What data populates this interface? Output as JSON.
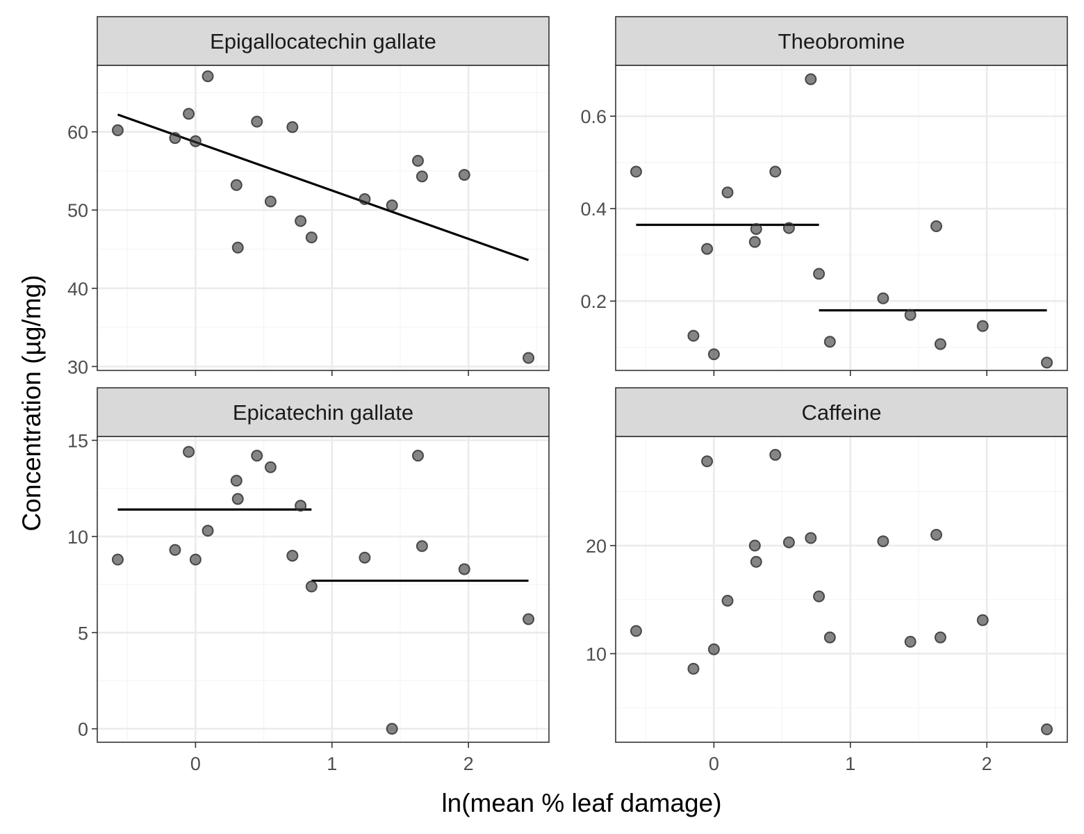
{
  "figure": {
    "xlabel": "ln(mean % leaf damage)",
    "ylabel": "Concentration (µg/mg)"
  },
  "colors": {
    "point_fill": "#333333",
    "point_opacity": 0.6,
    "strip_fill": "#d9d9d9",
    "panel_border": "#333333",
    "grid_major": "#ebebeb",
    "grid_minor": "#f5f5f5",
    "fit_line": "#000000"
  },
  "chart_data": [
    {
      "type": "scatter",
      "title": "Epigallocatechin gallate",
      "xlim": [
        -0.72,
        2.59
      ],
      "ylim": [
        29.5,
        68.5
      ],
      "xticks": [
        0,
        1,
        2
      ],
      "yticks": [
        30,
        40,
        50,
        60
      ],
      "points": [
        {
          "x": -0.57,
          "y": 60.2
        },
        {
          "x": -0.15,
          "y": 59.2
        },
        {
          "x": -0.05,
          "y": 62.3
        },
        {
          "x": 0.0,
          "y": 58.8
        },
        {
          "x": 0.09,
          "y": 67.1
        },
        {
          "x": 0.3,
          "y": 53.2
        },
        {
          "x": 0.31,
          "y": 45.2
        },
        {
          "x": 0.45,
          "y": 61.3
        },
        {
          "x": 0.55,
          "y": 51.1
        },
        {
          "x": 0.71,
          "y": 60.6
        },
        {
          "x": 0.77,
          "y": 48.6
        },
        {
          "x": 0.85,
          "y": 46.5
        },
        {
          "x": 1.24,
          "y": 51.4
        },
        {
          "x": 1.44,
          "y": 50.6
        },
        {
          "x": 1.63,
          "y": 56.3
        },
        {
          "x": 1.66,
          "y": 54.3
        },
        {
          "x": 1.97,
          "y": 54.5
        },
        {
          "x": 2.44,
          "y": 31.1
        }
      ],
      "fit_segments": [
        {
          "x": [
            -0.57,
            2.44
          ],
          "y": [
            62.2,
            43.6
          ]
        }
      ]
    },
    {
      "type": "scatter",
      "title": "Theobromine",
      "xlim": [
        -0.72,
        2.59
      ],
      "ylim": [
        0.05,
        0.71
      ],
      "xticks": [
        0,
        1,
        2
      ],
      "yticks": [
        0.2,
        0.4,
        0.6
      ],
      "ytick_labels": [
        "0.2",
        "0.4",
        "0.6"
      ],
      "points": [
        {
          "x": -0.57,
          "y": 0.48
        },
        {
          "x": -0.15,
          "y": 0.125
        },
        {
          "x": -0.05,
          "y": 0.313
        },
        {
          "x": 0.0,
          "y": 0.085
        },
        {
          "x": 0.1,
          "y": 0.435
        },
        {
          "x": 0.3,
          "y": 0.328
        },
        {
          "x": 0.31,
          "y": 0.356
        },
        {
          "x": 0.45,
          "y": 0.48
        },
        {
          "x": 0.55,
          "y": 0.358
        },
        {
          "x": 0.71,
          "y": 0.68
        },
        {
          "x": 0.77,
          "y": 0.259
        },
        {
          "x": 0.85,
          "y": 0.112
        },
        {
          "x": 1.24,
          "y": 0.206
        },
        {
          "x": 1.44,
          "y": 0.17
        },
        {
          "x": 1.63,
          "y": 0.362
        },
        {
          "x": 1.66,
          "y": 0.107
        },
        {
          "x": 1.97,
          "y": 0.146
        },
        {
          "x": 2.44,
          "y": 0.067
        }
      ],
      "fit_segments": [
        {
          "x": [
            -0.57,
            0.77
          ],
          "y": [
            0.365,
            0.365
          ]
        },
        {
          "x": [
            0.77,
            2.44
          ],
          "y": [
            0.18,
            0.18
          ]
        }
      ]
    },
    {
      "type": "scatter",
      "title": "Epicatechin gallate",
      "xlim": [
        -0.72,
        2.59
      ],
      "ylim": [
        -0.7,
        15.2
      ],
      "xticks": [
        0,
        1,
        2
      ],
      "yticks": [
        0,
        5,
        10,
        15
      ],
      "points": [
        {
          "x": -0.57,
          "y": 8.8
        },
        {
          "x": -0.15,
          "y": 9.3
        },
        {
          "x": -0.05,
          "y": 14.4
        },
        {
          "x": 0.0,
          "y": 8.8
        },
        {
          "x": 0.09,
          "y": 10.3
        },
        {
          "x": 0.3,
          "y": 12.9
        },
        {
          "x": 0.31,
          "y": 11.95
        },
        {
          "x": 0.45,
          "y": 14.2
        },
        {
          "x": 0.55,
          "y": 13.6
        },
        {
          "x": 0.71,
          "y": 9.0
        },
        {
          "x": 0.77,
          "y": 11.6
        },
        {
          "x": 0.85,
          "y": 7.4
        },
        {
          "x": 1.24,
          "y": 8.9
        },
        {
          "x": 1.44,
          "y": 0.0
        },
        {
          "x": 1.63,
          "y": 14.2
        },
        {
          "x": 1.66,
          "y": 9.5
        },
        {
          "x": 1.97,
          "y": 8.3
        },
        {
          "x": 2.44,
          "y": 5.7
        }
      ],
      "fit_segments": [
        {
          "x": [
            -0.57,
            0.85
          ],
          "y": [
            11.4,
            11.4
          ]
        },
        {
          "x": [
            0.85,
            2.44
          ],
          "y": [
            7.7,
            7.7
          ]
        }
      ]
    },
    {
      "type": "scatter",
      "title": "Caffeine",
      "xlim": [
        -0.72,
        2.59
      ],
      "ylim": [
        1.8,
        30.1
      ],
      "xticks": [
        0,
        1,
        2
      ],
      "yticks": [
        10,
        20
      ],
      "points": [
        {
          "x": -0.57,
          "y": 12.1
        },
        {
          "x": -0.15,
          "y": 8.6
        },
        {
          "x": -0.05,
          "y": 27.8
        },
        {
          "x": 0.0,
          "y": 10.4
        },
        {
          "x": 0.1,
          "y": 14.9
        },
        {
          "x": 0.3,
          "y": 20.0
        },
        {
          "x": 0.31,
          "y": 18.5
        },
        {
          "x": 0.45,
          "y": 28.4
        },
        {
          "x": 0.55,
          "y": 20.3
        },
        {
          "x": 0.71,
          "y": 20.7
        },
        {
          "x": 0.77,
          "y": 15.3
        },
        {
          "x": 0.85,
          "y": 11.5
        },
        {
          "x": 1.24,
          "y": 20.4
        },
        {
          "x": 1.44,
          "y": 11.1
        },
        {
          "x": 1.63,
          "y": 21.0
        },
        {
          "x": 1.66,
          "y": 11.5
        },
        {
          "x": 1.97,
          "y": 13.1
        },
        {
          "x": 2.44,
          "y": 3.0
        }
      ],
      "fit_segments": []
    }
  ]
}
